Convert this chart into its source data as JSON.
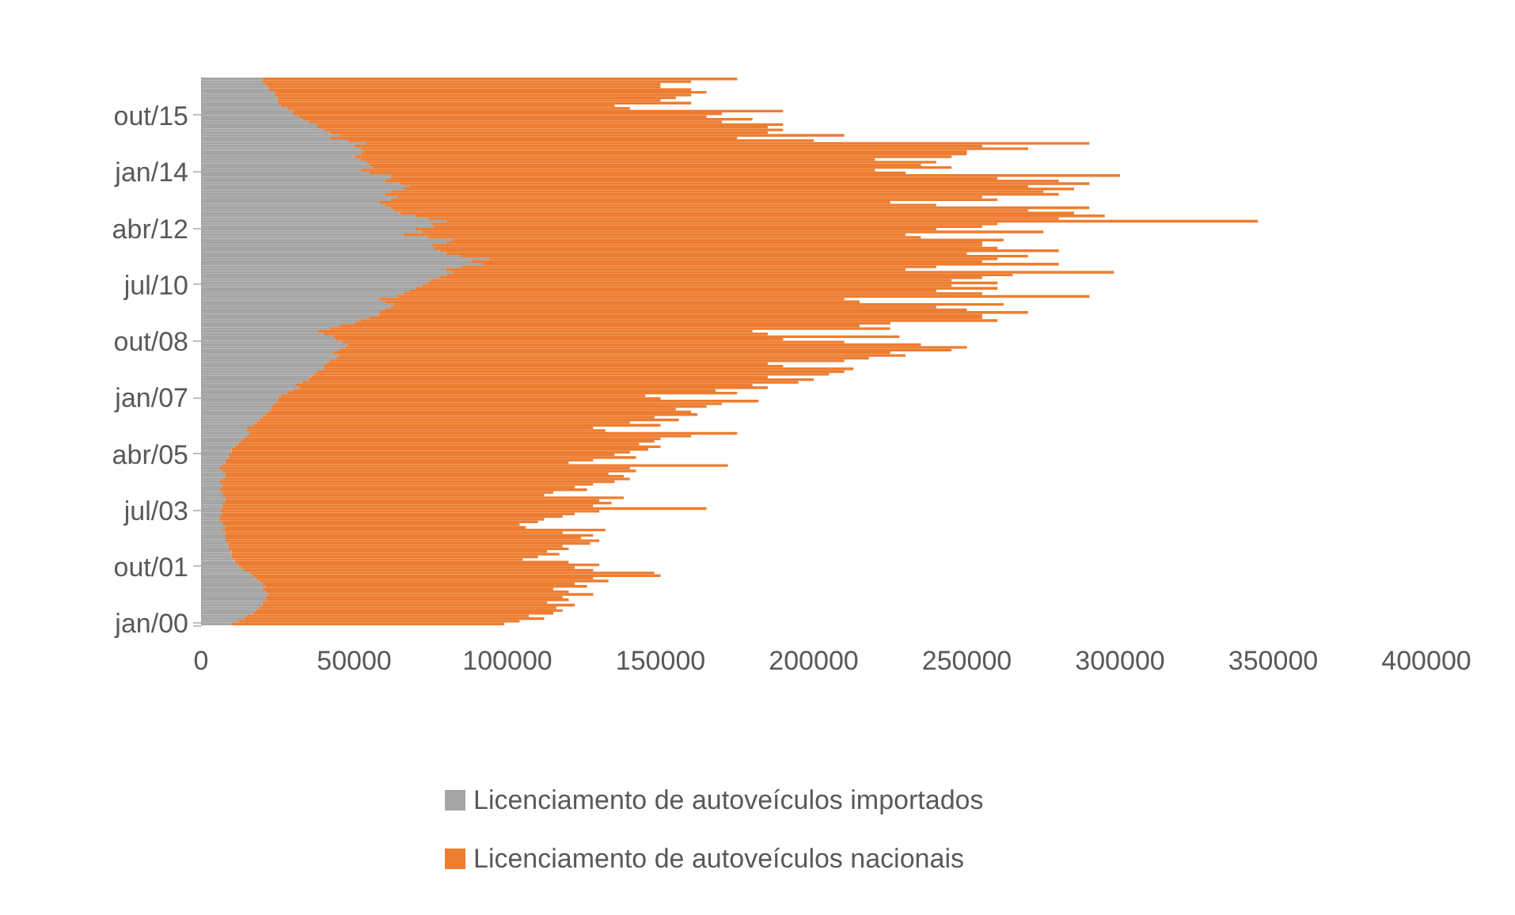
{
  "chart_data": {
    "type": "bar",
    "orientation": "horizontal",
    "stacked": true,
    "categories": [
      null,
      null,
      null,
      null,
      null,
      null,
      null,
      null,
      null,
      null,
      null,
      null,
      null,
      null,
      "out/15",
      null,
      null,
      null,
      null,
      null,
      null,
      null,
      null,
      null,
      null,
      null,
      null,
      null,
      null,
      null,
      null,
      null,
      null,
      null,
      null,
      "jan/14",
      null,
      null,
      null,
      null,
      null,
      null,
      null,
      null,
      null,
      null,
      null,
      null,
      null,
      null,
      null,
      null,
      null,
      null,
      null,
      null,
      "abr/12",
      null,
      null,
      null,
      null,
      null,
      null,
      null,
      null,
      null,
      null,
      null,
      null,
      null,
      null,
      null,
      null,
      null,
      null,
      null,
      null,
      "jul/10",
      null,
      null,
      null,
      null,
      null,
      null,
      null,
      null,
      null,
      null,
      null,
      null,
      null,
      null,
      null,
      null,
      null,
      null,
      null,
      null,
      "out/08",
      null,
      null,
      null,
      null,
      null,
      null,
      null,
      null,
      null,
      null,
      null,
      null,
      null,
      null,
      null,
      null,
      null,
      null,
      null,
      null,
      "jan/07",
      null,
      null,
      null,
      null,
      null,
      null,
      null,
      null,
      null,
      null,
      null,
      null,
      null,
      null,
      null,
      null,
      null,
      null,
      null,
      null,
      "abr/05",
      null,
      null,
      null,
      null,
      null,
      null,
      null,
      null,
      null,
      null,
      null,
      null,
      null,
      null,
      null,
      null,
      null,
      null,
      null,
      null,
      "jul/03",
      null,
      null,
      null,
      null,
      null,
      null,
      null,
      null,
      null,
      null,
      null,
      null,
      null,
      null,
      null,
      null,
      null,
      null,
      null,
      null,
      "out/01",
      null,
      null,
      null,
      null,
      null,
      null,
      null,
      null,
      null,
      null,
      null,
      null,
      null,
      null,
      null,
      null,
      null,
      null,
      null,
      null,
      "jan/00"
    ],
    "series": [
      {
        "name": "Licenciamento de autoveículos importados",
        "color": "#a5a5a5",
        "values": [
          20000,
          20000,
          21000,
          22000,
          22000,
          24000,
          24000,
          25000,
          25000,
          25000,
          26000,
          28000,
          30000,
          30000,
          32000,
          33000,
          35000,
          38000,
          38000,
          40000,
          42000,
          45000,
          42000,
          48000,
          54000,
          50000,
          52000,
          53000,
          52000,
          50000,
          52000,
          54000,
          55000,
          56000,
          52000,
          55000,
          62000,
          62000,
          60000,
          65000,
          68000,
          66000,
          62000,
          60000,
          64000,
          62000,
          58000,
          60000,
          62000,
          63000,
          65000,
          70000,
          74000,
          80000,
          75000,
          76000,
          70000,
          72000,
          66000,
          74000,
          82000,
          80000,
          75000,
          76000,
          78000,
          80000,
          85000,
          94000,
          88000,
          92000,
          85000,
          80000,
          82000,
          80000,
          78000,
          75000,
          74000,
          72000,
          70000,
          68000,
          66000,
          64000,
          58000,
          60000,
          63000,
          62000,
          60000,
          58000,
          58000,
          55000,
          52000,
          50000,
          45000,
          42000,
          38000,
          40000,
          43000,
          44000,
          46000,
          48000,
          47000,
          45000,
          43000,
          45000,
          44000,
          42000,
          41000,
          40000,
          40000,
          38000,
          37000,
          36000,
          35000,
          33000,
          31000,
          32000,
          30000,
          28000,
          26000,
          25000,
          25000,
          24000,
          23000,
          23000,
          22000,
          21000,
          20000,
          19000,
          18000,
          17000,
          15000,
          15000,
          16000,
          15000,
          14000,
          13000,
          12000,
          11000,
          10000,
          10000,
          9000,
          9000,
          8000,
          8000,
          7000,
          6000,
          7000,
          8000,
          8000,
          7000,
          6000,
          7000,
          7000,
          6000,
          7000,
          7000,
          8000,
          8000,
          7000,
          7000,
          7000,
          6000,
          7000,
          6000,
          6000,
          7000,
          7000,
          8000,
          7000,
          8000,
          8000,
          8000,
          8000,
          9000,
          9000,
          9000,
          10000,
          10000,
          10000,
          11000,
          11000,
          12000,
          13000,
          14000,
          16000,
          17000,
          18000,
          19000,
          20000,
          21000,
          20000,
          21000,
          22000,
          21000,
          21000,
          20000,
          20000,
          19000,
          18000,
          17000,
          15000,
          14000,
          12000,
          10000
        ]
      },
      {
        "name": "Licenciamento de autoveículos nacionais",
        "color": "#ed7d31",
        "values": [
          155000,
          140000,
          129000,
          128000,
          138000,
          141000,
          136000,
          130000,
          125000,
          135000,
          109000,
          112000,
          160000,
          140000,
          133000,
          147000,
          135000,
          152000,
          147000,
          150000,
          143000,
          165000,
          133000,
          152000,
          236000,
          205000,
          218000,
          197000,
          198000,
          195000,
          168000,
          186000,
          180000,
          189000,
          168000,
          175000,
          238000,
          198000,
          220000,
          225000,
          202000,
          219000,
          213000,
          220000,
          191000,
          198000,
          167000,
          180000,
          228000,
          207000,
          220000,
          225000,
          206000,
          265000,
          185000,
          179000,
          170000,
          203000,
          164000,
          161000,
          180000,
          175000,
          180000,
          184000,
          202000,
          170000,
          185000,
          166000,
          167000,
          188000,
          155000,
          150000,
          216000,
          185000,
          177000,
          170000,
          186000,
          173000,
          190000,
          172000,
          189000,
          226000,
          152000,
          155000,
          199000,
          178000,
          190000,
          212000,
          197000,
          200000,
          208000,
          175000,
          170000,
          183000,
          142000,
          145000,
          185000,
          146000,
          164000,
          187000,
          203000,
          200000,
          182000,
          185000,
          174000,
          168000,
          144000,
          150000,
          173000,
          172000,
          168000,
          149000,
          165000,
          162000,
          149000,
          153000,
          138000,
          147000,
          119000,
          125000,
          157000,
          146000,
          142000,
          132000,
          138000,
          141000,
          128000,
          137000,
          122000,
          133000,
          113000,
          117000,
          159000,
          145000,
          136000,
          135000,
          131000,
          139000,
          136000,
          130000,
          126000,
          133000,
          120000,
          112000,
          165000,
          134000,
          135000,
          125000,
          130000,
          133000,
          129000,
          121000,
          115000,
          120000,
          108000,
          105000,
          130000,
          122000,
          127000,
          121000,
          158000,
          124000,
          115000,
          112000,
          106000,
          103000,
          97000,
          98000,
          125000,
          110000,
          120000,
          116000,
          122000,
          118000,
          109000,
          111000,
          103000,
          107000,
          100000,
          94000,
          109000,
          118000,
          109000,
          114000,
          132000,
          133000,
          110000,
          114000,
          102000,
          105000,
          95000,
          99000,
          106000,
          97000,
          99000,
          93000,
          102000,
          97000,
          100000,
          98000,
          92000,
          98000,
          92000,
          89000
        ]
      }
    ],
    "xlim": [
      0,
      400000
    ],
    "xticks": [
      0,
      50000,
      100000,
      150000,
      200000,
      250000,
      300000,
      350000,
      400000
    ],
    "grid": false,
    "legend": "bottom"
  }
}
